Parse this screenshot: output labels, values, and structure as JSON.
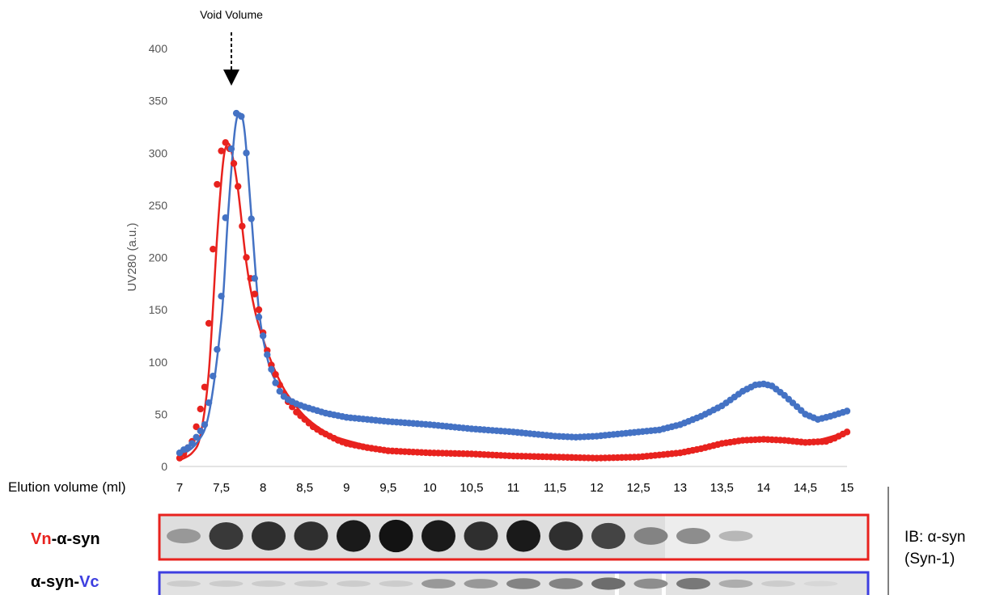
{
  "annotation": {
    "text": "Void Volume"
  },
  "colors": {
    "red": "#e8221e",
    "blue": "#4472c4",
    "red_frame": "#e8221e",
    "blue_frame": "#3e3fe0"
  },
  "chart_data": {
    "type": "scatter",
    "xlabel": "Elution volume (ml)",
    "ylabel": "UV280 (a.u.)",
    "xlim": [
      7,
      15
    ],
    "ylim": [
      0,
      400
    ],
    "x_ticks": [
      "7",
      "7,5",
      "8",
      "8,5",
      "9",
      "9,5",
      "10",
      "10,5",
      "11",
      "11,5",
      "12",
      "12,5",
      "13",
      "13,5",
      "14",
      "14,5",
      "15"
    ],
    "y_ticks": [
      "0",
      "50",
      "100",
      "150",
      "200",
      "250",
      "300",
      "350",
      "400"
    ],
    "grid": false,
    "annotation_x": 7.62,
    "series": [
      {
        "color": "red",
        "points": [
          [
            7.0,
            8
          ],
          [
            7.05,
            12
          ],
          [
            7.1,
            18
          ],
          [
            7.15,
            24
          ],
          [
            7.2,
            38
          ],
          [
            7.25,
            55
          ],
          [
            7.3,
            76
          ],
          [
            7.35,
            137
          ],
          [
            7.4,
            208
          ],
          [
            7.45,
            270
          ],
          [
            7.5,
            302
          ],
          [
            7.55,
            310
          ],
          [
            7.6,
            304
          ],
          [
            7.65,
            290
          ],
          [
            7.7,
            268
          ],
          [
            7.75,
            230
          ],
          [
            7.8,
            200
          ],
          [
            7.85,
            180
          ],
          [
            7.9,
            165
          ],
          [
            7.95,
            150
          ],
          [
            8.0,
            128
          ],
          [
            8.05,
            111
          ],
          [
            8.1,
            97
          ],
          [
            8.15,
            88
          ],
          [
            8.2,
            78
          ],
          [
            8.25,
            70
          ],
          [
            8.3,
            62
          ],
          [
            8.4,
            52
          ],
          [
            8.5,
            45
          ],
          [
            8.6,
            38
          ],
          [
            8.7,
            33
          ],
          [
            8.8,
            29
          ],
          [
            8.9,
            25
          ],
          [
            9.0,
            22
          ],
          [
            9.25,
            18
          ],
          [
            9.5,
            15
          ],
          [
            9.75,
            14
          ],
          [
            10.0,
            13
          ],
          [
            10.5,
            12
          ],
          [
            11.0,
            10
          ],
          [
            11.5,
            9
          ],
          [
            12.0,
            8
          ],
          [
            12.5,
            9
          ],
          [
            12.75,
            11
          ],
          [
            13.0,
            13
          ],
          [
            13.25,
            17
          ],
          [
            13.5,
            22
          ],
          [
            13.75,
            25
          ],
          [
            14.0,
            26
          ],
          [
            14.25,
            25
          ],
          [
            14.5,
            23
          ],
          [
            14.75,
            24
          ],
          [
            14.85,
            27
          ],
          [
            15.0,
            33
          ]
        ],
        "fit": [
          [
            7.0,
            6
          ],
          [
            7.15,
            13
          ],
          [
            7.25,
            30
          ],
          [
            7.35,
            90
          ],
          [
            7.45,
            220
          ],
          [
            7.52,
            290
          ],
          [
            7.57,
            308
          ],
          [
            7.62,
            302
          ],
          [
            7.7,
            265
          ],
          [
            7.8,
            195
          ],
          [
            7.9,
            150
          ],
          [
            8.0,
            122
          ],
          [
            8.1,
            100
          ],
          [
            8.2,
            82
          ],
          [
            8.3,
            68
          ],
          [
            8.5,
            48
          ],
          [
            8.75,
            33
          ],
          [
            9.0,
            25
          ],
          [
            9.5,
            16
          ],
          [
            10.0,
            13
          ],
          [
            11.0,
            10
          ],
          [
            12.0,
            8
          ],
          [
            12.5,
            9
          ],
          [
            13.0,
            13
          ],
          [
            13.5,
            21
          ],
          [
            14.0,
            26
          ],
          [
            14.5,
            23
          ],
          [
            15.0,
            33
          ]
        ]
      },
      {
        "color": "blue",
        "points": [
          [
            7.0,
            13
          ],
          [
            7.05,
            16
          ],
          [
            7.1,
            18
          ],
          [
            7.15,
            22
          ],
          [
            7.2,
            28
          ],
          [
            7.3,
            40
          ],
          [
            7.35,
            61
          ],
          [
            7.45,
            112
          ],
          [
            7.5,
            163
          ],
          [
            7.55,
            238
          ],
          [
            7.62,
            304
          ],
          [
            7.68,
            338
          ],
          [
            7.74,
            335
          ],
          [
            7.8,
            300
          ],
          [
            7.86,
            237
          ],
          [
            7.9,
            180
          ],
          [
            7.95,
            143
          ],
          [
            8.0,
            125
          ],
          [
            8.05,
            107
          ],
          [
            8.1,
            93
          ],
          [
            8.15,
            80
          ],
          [
            8.2,
            72
          ],
          [
            8.25,
            67
          ],
          [
            8.3,
            64
          ],
          [
            8.35,
            62
          ],
          [
            8.4,
            60
          ],
          [
            8.5,
            57
          ],
          [
            8.75,
            51
          ],
          [
            9.0,
            47
          ],
          [
            9.25,
            45
          ],
          [
            9.5,
            43
          ],
          [
            10.0,
            40
          ],
          [
            10.5,
            36
          ],
          [
            11.0,
            33
          ],
          [
            11.5,
            29
          ],
          [
            11.75,
            28
          ],
          [
            12.0,
            29
          ],
          [
            12.5,
            33
          ],
          [
            12.75,
            35
          ],
          [
            13.0,
            40
          ],
          [
            13.25,
            48
          ],
          [
            13.5,
            58
          ],
          [
            13.75,
            72
          ],
          [
            13.9,
            78
          ],
          [
            14.0,
            79
          ],
          [
            14.1,
            77
          ],
          [
            14.25,
            68
          ],
          [
            14.5,
            50
          ],
          [
            14.65,
            45
          ],
          [
            14.8,
            48
          ],
          [
            15.0,
            53
          ]
        ],
        "fit": [
          [
            7.0,
            10
          ],
          [
            7.2,
            22
          ],
          [
            7.35,
            50
          ],
          [
            7.5,
            140
          ],
          [
            7.58,
            240
          ],
          [
            7.66,
            320
          ],
          [
            7.72,
            338
          ],
          [
            7.78,
            320
          ],
          [
            7.86,
            240
          ],
          [
            7.95,
            150
          ],
          [
            8.05,
            104
          ],
          [
            8.15,
            82
          ],
          [
            8.3,
            65
          ],
          [
            8.5,
            57
          ],
          [
            9.0,
            47
          ],
          [
            10.0,
            40
          ],
          [
            11.0,
            33
          ],
          [
            11.75,
            28
          ],
          [
            12.5,
            33
          ],
          [
            13.0,
            40
          ],
          [
            13.5,
            58
          ],
          [
            13.9,
            78
          ],
          [
            14.0,
            79
          ],
          [
            14.25,
            68
          ],
          [
            14.5,
            50
          ],
          [
            14.65,
            45
          ],
          [
            15.0,
            53
          ]
        ]
      }
    ]
  },
  "blots": {
    "red_row": {
      "label_a": "Vn",
      "label_b": "-α-syn",
      "bands": [
        0.35,
        0.8,
        0.85,
        0.85,
        0.95,
        0.98,
        0.95,
        0.85,
        0.95,
        0.85,
        0.75,
        0.45,
        0.4,
        0.2,
        0.0,
        0.0,
        0.0
      ]
    },
    "blue_row": {
      "label_a": "α-syn-",
      "label_b": "Vc",
      "bands": [
        0.1,
        0.1,
        0.1,
        0.1,
        0.1,
        0.1,
        0.35,
        0.35,
        0.45,
        0.45,
        0.55,
        0.4,
        0.5,
        0.25,
        0.1,
        0.05,
        0.0
      ]
    },
    "ib_label_1": "IB: α-syn",
    "ib_label_2": "(Syn-1)"
  }
}
